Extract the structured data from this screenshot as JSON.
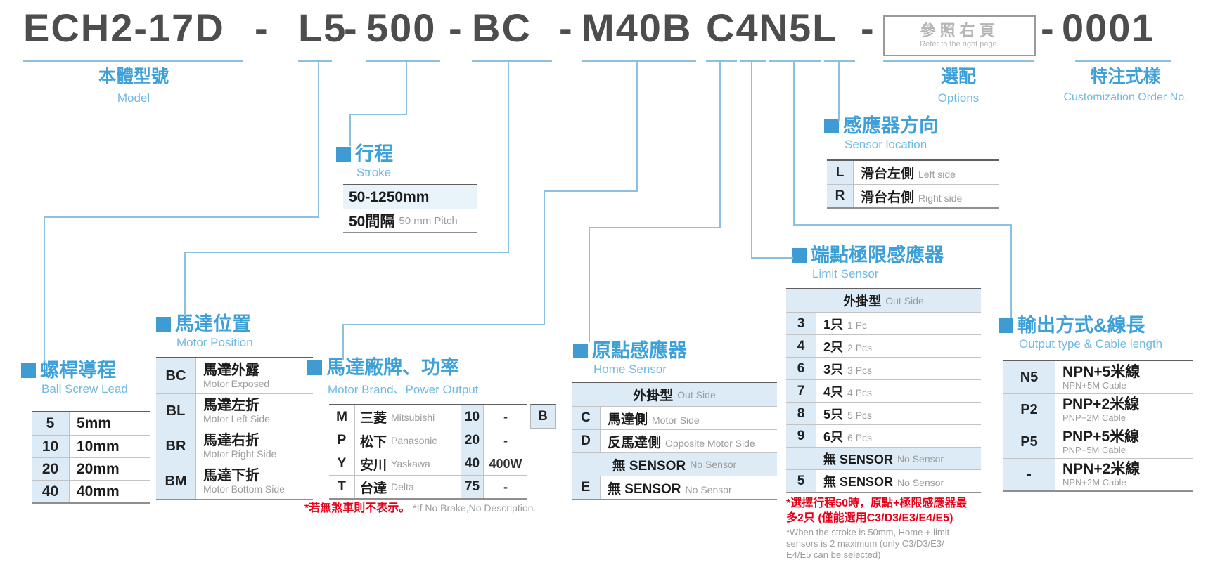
{
  "model_code": {
    "body": "ECH2-17D",
    "lead": "L5",
    "stroke": "500",
    "motor_position": "BC",
    "brand_power": "M40B",
    "sensors": "C4N5L",
    "order_no": "0001",
    "separator": "-",
    "options_box": {
      "zh": "參照右頁",
      "en": "Refer to the right page."
    }
  },
  "labels": {
    "model": {
      "zh": "本體型號",
      "en": "Model"
    },
    "options": {
      "zh": "選配",
      "en": "Options"
    },
    "customization": {
      "zh": "特注式樣",
      "en": "Customization Order No."
    }
  },
  "colors": {
    "accent_blue": "#3da0d8",
    "light_blue_bg": "#dcebf6",
    "note_red": "#e60019"
  },
  "sections": {
    "ball_screw_lead": {
      "title_zh": "螺桿導程",
      "title_en": "Ball Screw Lead",
      "rows": [
        {
          "code": "5",
          "zh": "5mm"
        },
        {
          "code": "10",
          "zh": "10mm"
        },
        {
          "code": "20",
          "zh": "20mm"
        },
        {
          "code": "40",
          "zh": "40mm"
        }
      ]
    },
    "motor_position": {
      "title_zh": "馬達位置",
      "title_en": "Motor Position",
      "rows": [
        {
          "code": "BC",
          "zh": "馬達外露",
          "en": "Motor Exposed"
        },
        {
          "code": "BL",
          "zh": "馬達左折",
          "en": "Motor Left Side"
        },
        {
          "code": "BR",
          "zh": "馬達右折",
          "en": "Motor Right Side"
        },
        {
          "code": "BM",
          "zh": "馬達下折",
          "en": "Motor Bottom Side"
        }
      ]
    },
    "stroke": {
      "title_zh": "行程",
      "title_en": "Stroke",
      "range": "50-1250mm",
      "pitch_zh": "50間隔",
      "pitch_en": "50 mm Pitch"
    },
    "motor_brand": {
      "title_zh": "馬達廠牌、功率",
      "title_en": "Motor Brand、Power Output",
      "rows": [
        {
          "code": "M",
          "zh": "三菱",
          "en": "Mitsubishi",
          "power_code": "10",
          "power": "-"
        },
        {
          "code": "P",
          "zh": "松下",
          "en": "Panasonic",
          "power_code": "20",
          "power": "-"
        },
        {
          "code": "Y",
          "zh": "安川",
          "en": "Yaskawa",
          "power_code": "40",
          "power": "400W"
        },
        {
          "code": "T",
          "zh": "台達",
          "en": "Delta",
          "power_code": "75",
          "power": "-"
        }
      ],
      "brake_code": "B",
      "note_zh": "*若無煞車則不表示。",
      "note_en": "*If No Brake,No Description."
    },
    "home_sensor": {
      "title_zh": "原點感應器",
      "title_en": "Home Sensor",
      "rows": [
        {
          "header": true,
          "zh": "外掛型",
          "en": "Out Side"
        },
        {
          "code": "C",
          "zh": "馬達側",
          "en": "Motor Side"
        },
        {
          "code": "D",
          "zh": "反馬達側",
          "en": "Opposite Motor Side"
        },
        {
          "header": true,
          "zh": "無 SENSOR",
          "en": "No Sensor"
        },
        {
          "code": "E",
          "zh": "無 SENSOR",
          "en": "No Sensor"
        }
      ]
    },
    "limit_sensor": {
      "title_zh": "端點極限感應器",
      "title_en": "Limit Sensor",
      "rows": [
        {
          "header": true,
          "zh": "外掛型",
          "en": "Out Side"
        },
        {
          "code": "3",
          "zh": "1只",
          "en": "1 Pc"
        },
        {
          "code": "4",
          "zh": "2只",
          "en": "2 Pcs"
        },
        {
          "code": "6",
          "zh": "3只",
          "en": "3 Pcs"
        },
        {
          "code": "7",
          "zh": "4只",
          "en": "4 Pcs"
        },
        {
          "code": "8",
          "zh": "5只",
          "en": "5 Pcs"
        },
        {
          "code": "9",
          "zh": "6只",
          "en": "6 Pcs"
        },
        {
          "header": true,
          "zh": "無 SENSOR",
          "en": "No Sensor"
        },
        {
          "code": "5",
          "zh": "無 SENSOR",
          "en": "No Sensor"
        }
      ],
      "notes_zh": [
        "*選擇行程50時，原點+極限感應器最",
        "多2只 (僅能選用C3/D3/E3/E4/E5)"
      ],
      "notes_en": [
        "*When the stroke is 50mm, Home + limit",
        "sensors is 2 maximum (only C3/D3/E3/",
        "E4/E5 can be selected)"
      ]
    },
    "sensor_location": {
      "title_zh": "感應器方向",
      "title_en": "Sensor location",
      "rows": [
        {
          "code": "L",
          "zh": "滑台左側",
          "en": "Left side"
        },
        {
          "code": "R",
          "zh": "滑台右側",
          "en": "Right side"
        }
      ]
    },
    "output_type": {
      "title_zh": "輸出方式&線長",
      "title_en": "Output type & Cable length",
      "rows": [
        {
          "code": "N5",
          "zh": "NPN+5米線",
          "en": "NPN+5M Cable"
        },
        {
          "code": "P2",
          "zh": "PNP+2米線",
          "en": "PNP+2M Cable"
        },
        {
          "code": "P5",
          "zh": "PNP+5米線",
          "en": "PNP+5M Cable"
        },
        {
          "code": "-",
          "zh": "NPN+2米線",
          "en": "NPN+2M Cable"
        }
      ]
    }
  }
}
